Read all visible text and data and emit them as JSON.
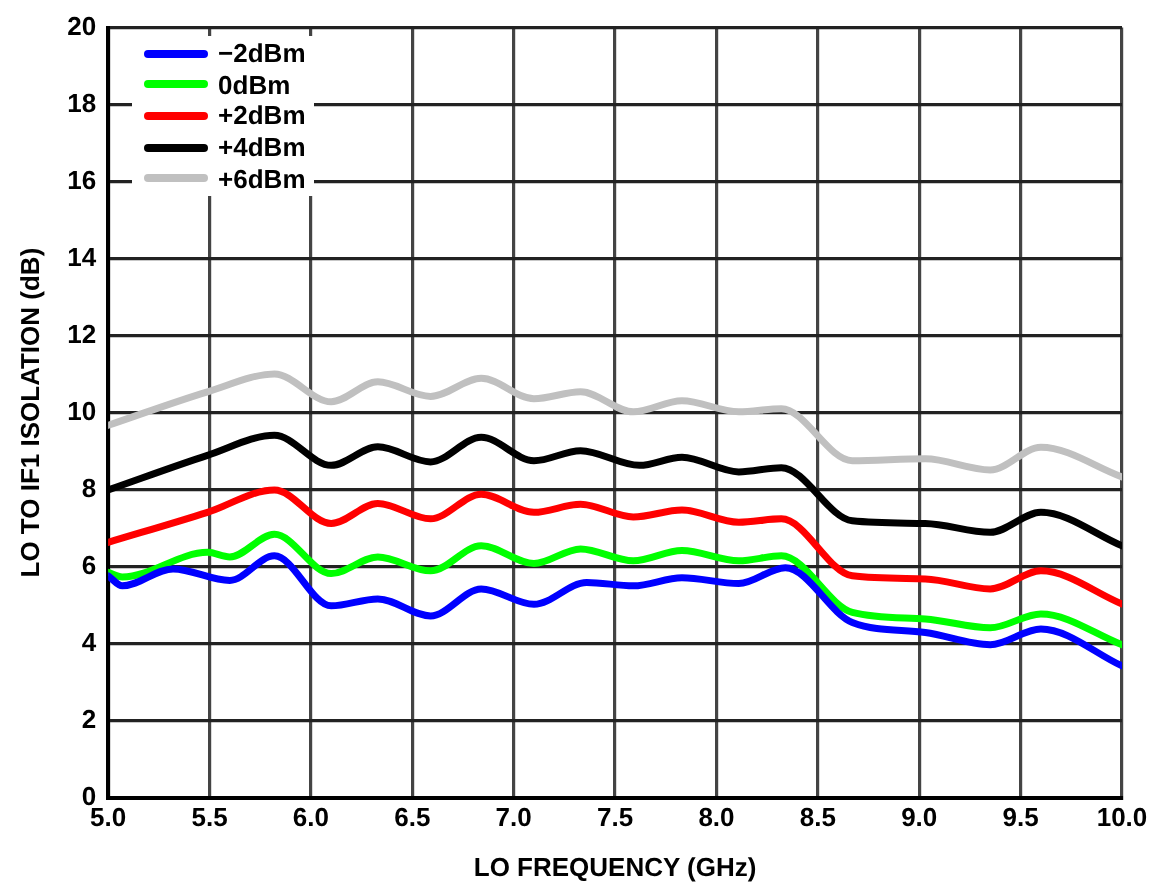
{
  "chart_data": {
    "type": "line",
    "xlabel": "LO FREQUENCY (GHz)",
    "ylabel": "LO TO IF1 ISOLATION (dB)",
    "xlim": [
      5.0,
      10.0
    ],
    "xticks": [
      {
        "value": 5,
        "label": "5.0"
      },
      5.5,
      {
        "value": 6,
        "label": "6.0"
      },
      6.5,
      {
        "value": 7,
        "label": "7.0"
      },
      7.5,
      {
        "value": 8,
        "label": "8.0"
      },
      8.5,
      {
        "value": 9,
        "label": "9.0"
      },
      9.5,
      {
        "value": 10,
        "label": "10.0"
      }
    ],
    "ylim": [
      0,
      20
    ],
    "yticks": [
      0,
      2,
      4,
      6,
      8,
      10,
      12,
      14,
      16,
      18,
      20
    ],
    "grid": true,
    "legend": "top left",
    "marker": "none",
    "line_style": "solid",
    "series": [
      {
        "name": "−2dBm",
        "color": "#0000ff",
        "x": [
          5.0,
          5.07,
          5.32,
          5.6,
          5.82,
          6.1,
          6.33,
          6.59,
          6.84,
          7.1,
          7.36,
          7.59,
          7.83,
          8.11,
          8.34,
          8.67,
          9.03,
          9.35,
          9.6,
          10.0
        ],
        "values": [
          5.76,
          5.5,
          5.94,
          5.64,
          6.28,
          4.98,
          5.16,
          4.72,
          5.42,
          5.02,
          5.59,
          5.5,
          5.71,
          5.56,
          5.97,
          4.55,
          4.29,
          3.97,
          4.38,
          3.42
        ]
      },
      {
        "name": "0dBm",
        "color": "#00ff00",
        "x": [
          5.0,
          5.07,
          5.49,
          5.6,
          5.82,
          6.1,
          6.33,
          6.59,
          6.84,
          7.1,
          7.33,
          7.59,
          7.83,
          8.11,
          8.32,
          8.67,
          9.03,
          9.35,
          9.6,
          10.0
        ],
        "values": [
          5.85,
          5.73,
          6.37,
          6.25,
          6.84,
          5.82,
          6.25,
          5.89,
          6.54,
          6.08,
          6.46,
          6.15,
          6.42,
          6.15,
          6.28,
          4.81,
          4.64,
          4.41,
          4.77,
          3.97
        ]
      },
      {
        "name": "+2dBm",
        "color": "#ff0000",
        "x": [
          5.0,
          5.49,
          5.82,
          6.1,
          6.33,
          6.59,
          6.84,
          7.1,
          7.33,
          7.59,
          7.83,
          8.11,
          8.32,
          8.67,
          9.03,
          9.35,
          9.6,
          10.0
        ],
        "values": [
          6.63,
          7.41,
          7.99,
          7.12,
          7.64,
          7.24,
          7.88,
          7.41,
          7.62,
          7.29,
          7.47,
          7.15,
          7.24,
          5.76,
          5.68,
          5.42,
          5.89,
          5.03
        ]
      },
      {
        "name": "+4dBm",
        "color": "#000000",
        "x": [
          5.0,
          5.49,
          5.82,
          6.1,
          6.33,
          6.59,
          6.84,
          7.1,
          7.33,
          7.62,
          7.83,
          8.11,
          8.32,
          8.67,
          9.03,
          9.35,
          9.6,
          10.0
        ],
        "values": [
          7.99,
          8.89,
          9.41,
          8.63,
          9.11,
          8.72,
          9.36,
          8.75,
          9.01,
          8.63,
          8.84,
          8.46,
          8.57,
          7.19,
          7.12,
          6.89,
          7.41,
          6.54
        ]
      },
      {
        "name": "+6dBm",
        "color": "#c0c0c0",
        "x": [
          5.0,
          5.49,
          5.82,
          6.1,
          6.33,
          6.59,
          6.84,
          7.1,
          7.33,
          7.59,
          7.83,
          8.11,
          8.32,
          8.67,
          9.03,
          9.35,
          9.6,
          10.0
        ],
        "values": [
          9.67,
          10.54,
          11.0,
          10.28,
          10.8,
          10.42,
          10.89,
          10.36,
          10.54,
          10.02,
          10.31,
          10.02,
          10.1,
          8.75,
          8.8,
          8.51,
          9.1,
          8.33
        ]
      }
    ]
  }
}
